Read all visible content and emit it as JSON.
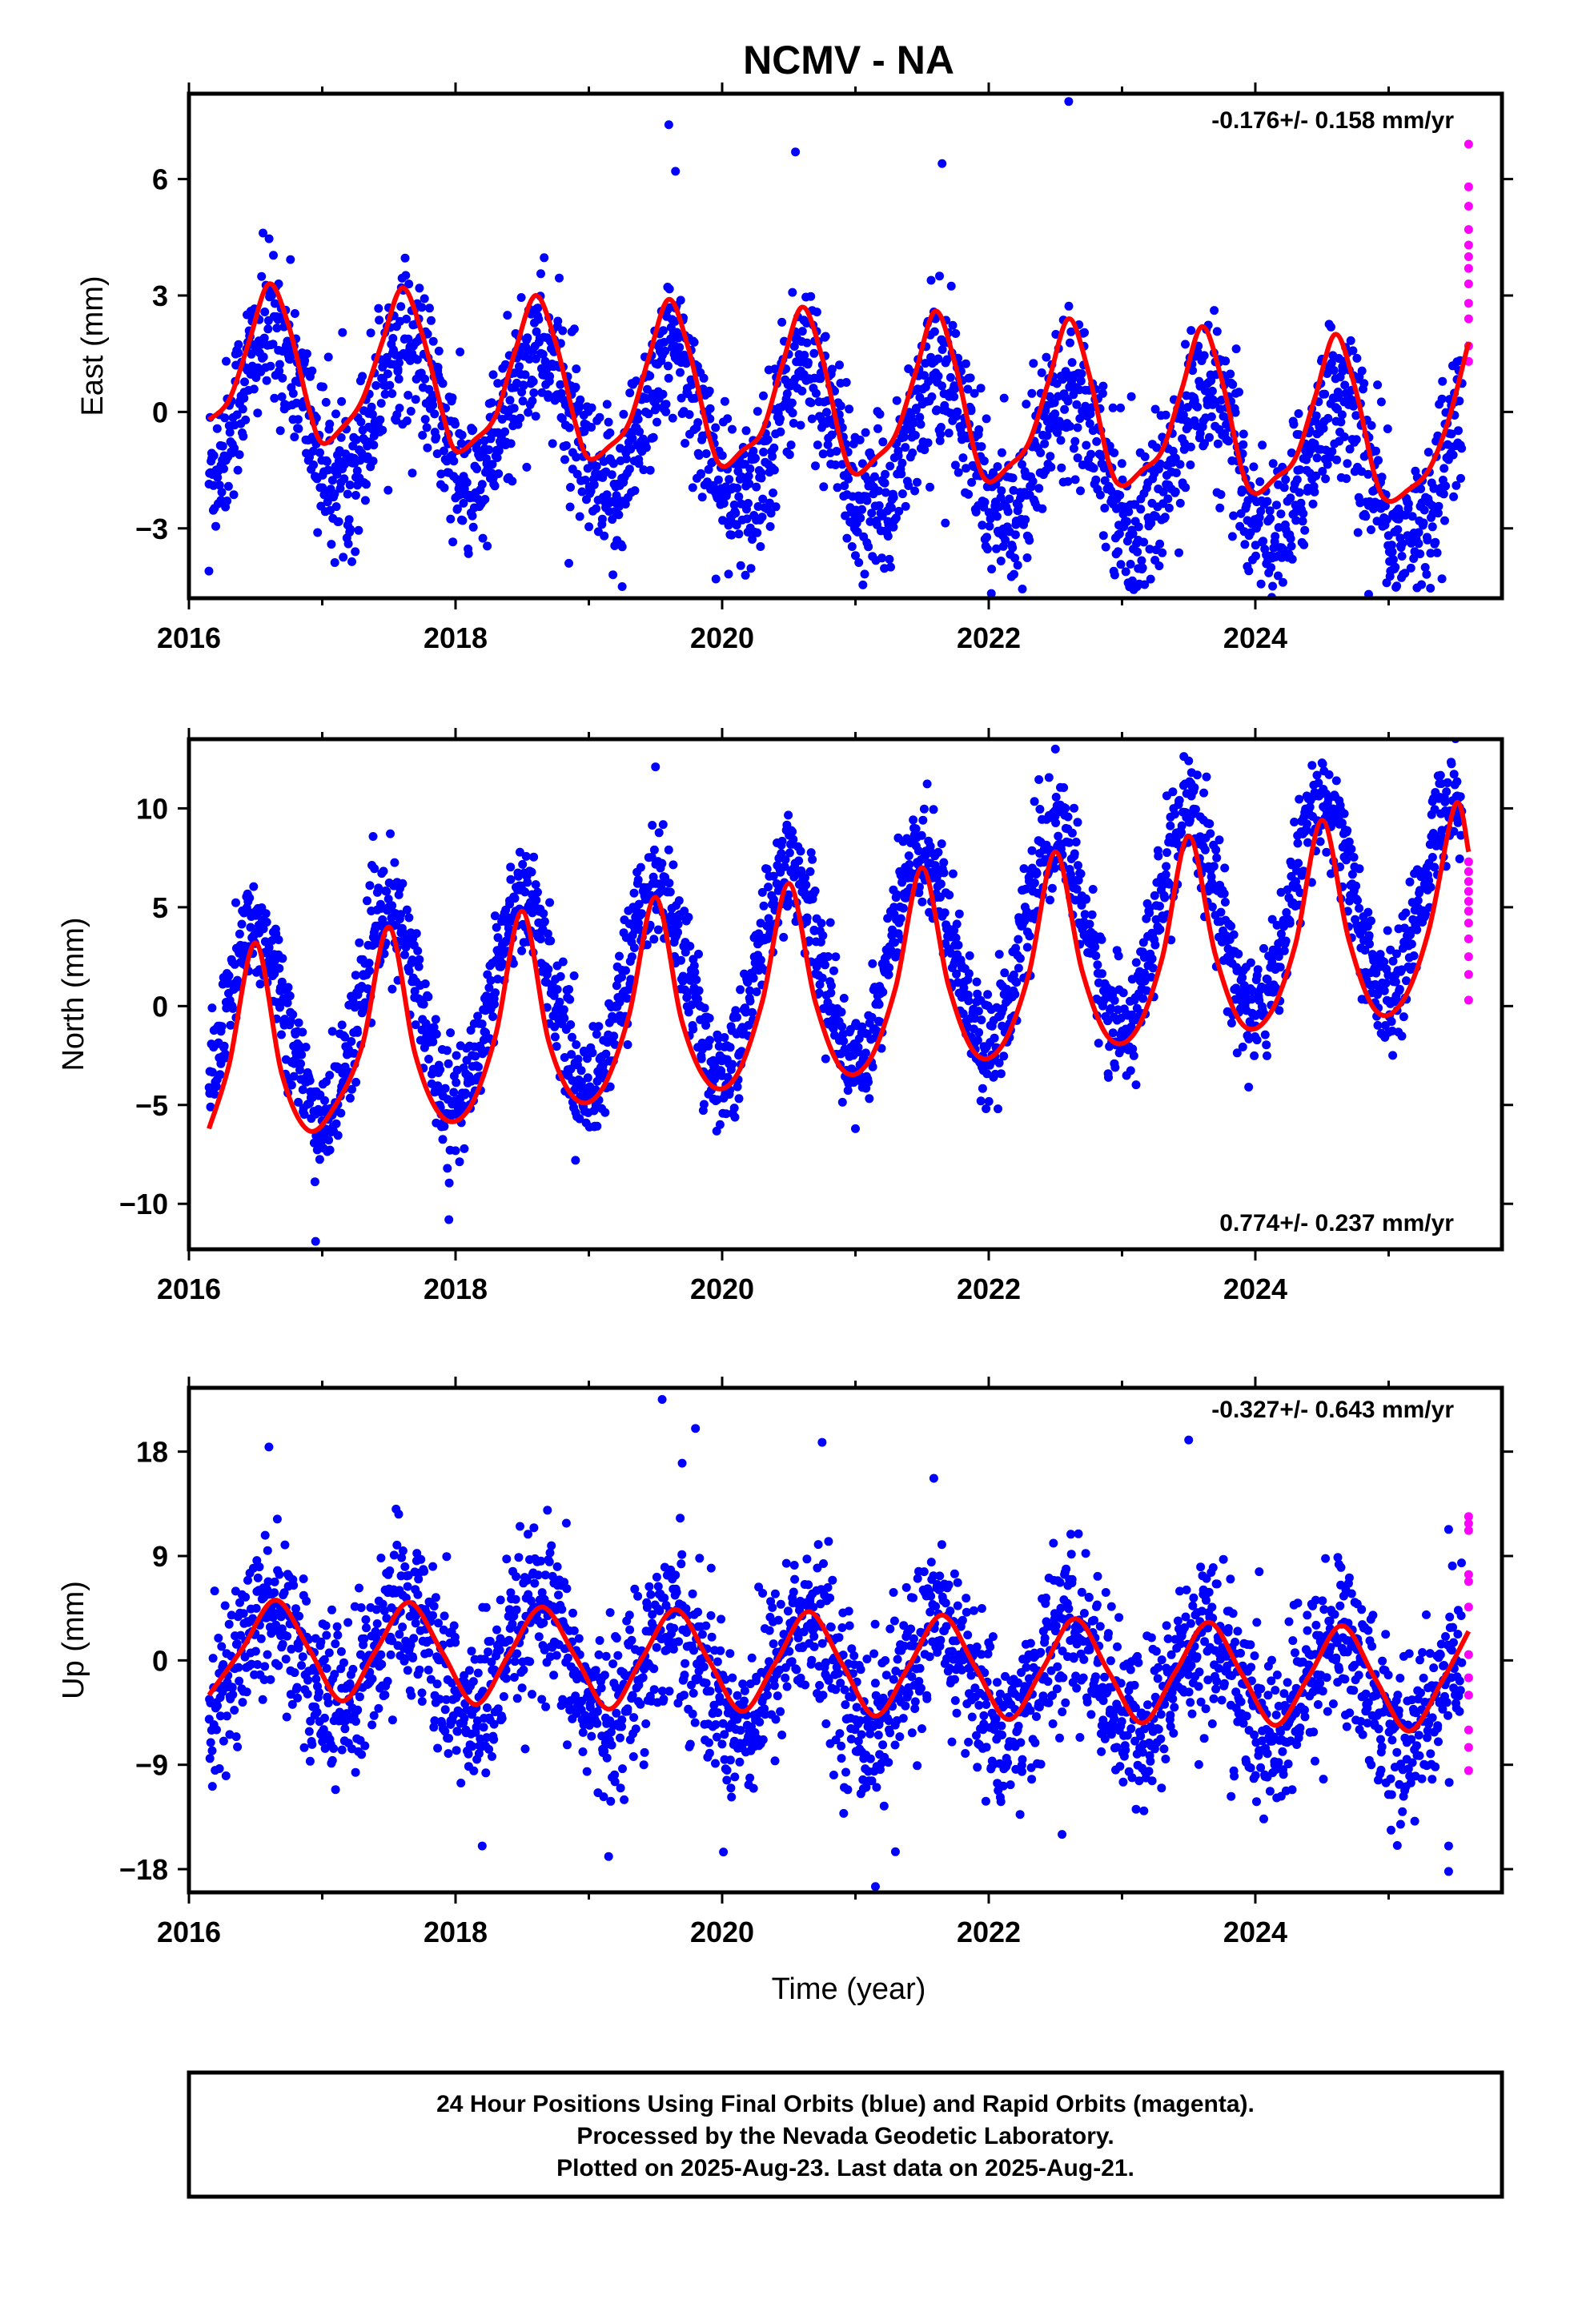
{
  "title": "NCMV - NA",
  "xlabel": "Time (year)",
  "footer": {
    "line1": "24 Hour Positions Using Final Orbits (blue) and Rapid Orbits (magenta).",
    "line2": "Processed by the Nevada Geodetic Laboratory.",
    "line3": "Plotted on 2025-Aug-23. Last data on 2025-Aug-21."
  },
  "colors": {
    "final": "#0000ff",
    "rapid": "#ff00ff",
    "model": "#ff0000"
  },
  "chart_data": [
    {
      "type": "scatter",
      "ylabel": "East (mm)",
      "rate_label": "-0.176+/- 0.158 mm/yr",
      "xlim": [
        2016.0,
        2025.85
      ],
      "ylim": [
        -4.8,
        8.2
      ],
      "xticks": [
        2016,
        2018,
        2020,
        2022,
        2024
      ],
      "yticks": [
        -3,
        0,
        3,
        6
      ],
      "ytick_labels": [
        "−3",
        "0",
        "3",
        "6"
      ],
      "model": {
        "x": [
          2016.15,
          2016.3,
          2016.45,
          2016.6,
          2016.75,
          2016.9,
          2017.0,
          2017.15,
          2017.3,
          2017.45,
          2017.6,
          2017.75,
          2017.9,
          2018.0,
          2018.15,
          2018.3,
          2018.45,
          2018.6,
          2018.75,
          2018.9,
          2019.0,
          2019.15,
          2019.3,
          2019.45,
          2019.6,
          2019.75,
          2019.9,
          2020.0,
          2020.15,
          2020.3,
          2020.45,
          2020.6,
          2020.75,
          2020.9,
          2021.0,
          2021.15,
          2021.3,
          2021.45,
          2021.6,
          2021.75,
          2021.9,
          2022.0,
          2022.15,
          2022.3,
          2022.45,
          2022.6,
          2022.75,
          2022.9,
          2023.0,
          2023.15,
          2023.3,
          2023.45,
          2023.6,
          2023.75,
          2023.9,
          2024.0,
          2024.15,
          2024.3,
          2024.45,
          2024.6,
          2024.75,
          2024.9,
          2025.0,
          2025.15,
          2025.3,
          2025.45,
          2025.6
        ],
        "y": [
          -0.2,
          0.3,
          1.8,
          3.3,
          2.2,
          0.1,
          -0.8,
          -0.4,
          0.3,
          1.8,
          3.2,
          2.0,
          0.0,
          -1.0,
          -0.7,
          -0.1,
          1.6,
          3.0,
          1.8,
          -0.3,
          -1.2,
          -0.9,
          -0.3,
          1.4,
          2.9,
          1.6,
          -0.6,
          -1.4,
          -1.0,
          -0.5,
          1.2,
          2.7,
          1.4,
          -0.9,
          -1.6,
          -1.2,
          -0.6,
          1.0,
          2.6,
          1.2,
          -1.1,
          -1.8,
          -1.4,
          -0.8,
          0.8,
          2.4,
          1.0,
          -1.3,
          -1.9,
          -1.5,
          -1.0,
          0.6,
          2.2,
          0.8,
          -1.5,
          -2.1,
          -1.7,
          -1.2,
          0.4,
          2.0,
          0.6,
          -1.7,
          -2.3,
          -2.0,
          -1.5,
          -0.2,
          1.8
        ]
      },
      "seasonal": {
        "amp": 1.9,
        "peak": 0.62,
        "trend": -0.22,
        "base": 0.35,
        "noise": 1.0,
        "y0": 2016.15,
        "y1": 2025.55
      },
      "rapid": {
        "x": 2025.6,
        "values": [
          5.8,
          5.3,
          4.7,
          4.3,
          4.0,
          3.7,
          3.3,
          2.8,
          2.4,
          1.7,
          1.3,
          6.9
        ]
      },
      "outliers": [
        {
          "x": 2019.6,
          "y": 7.4
        },
        {
          "x": 2019.65,
          "y": 6.2
        },
        {
          "x": 2022.6,
          "y": 8.0
        },
        {
          "x": 2020.55,
          "y": 6.7
        },
        {
          "x": 2021.65,
          "y": 6.4
        },
        {
          "x": 2016.15,
          "y": -4.1
        },
        {
          "x": 2019.25,
          "y": -4.5
        },
        {
          "x": 2024.85,
          "y": -4.7
        },
        {
          "x": 2025.05,
          "y": -4.0
        },
        {
          "x": 2018.85,
          "y": -3.9
        },
        {
          "x": 2025.4,
          "y": -4.3
        },
        {
          "x": 2021.0,
          "y": -3.7
        }
      ]
    },
    {
      "type": "scatter",
      "ylabel": "North (mm)",
      "rate_label": "0.774+/- 0.237 mm/yr",
      "xlim": [
        2016.0,
        2025.85
      ],
      "ylim": [
        -12.3,
        13.5
      ],
      "xticks": [
        2016,
        2018,
        2020,
        2022,
        2024
      ],
      "yticks": [
        -10,
        -5,
        0,
        5,
        10
      ],
      "ytick_labels": [
        "−10",
        "−5",
        "0",
        "5",
        "10"
      ],
      "model": {
        "x": [
          2016.15,
          2016.3,
          2016.5,
          2016.7,
          2016.9,
          2017.1,
          2017.3,
          2017.5,
          2017.7,
          2017.9,
          2018.1,
          2018.3,
          2018.5,
          2018.7,
          2018.9,
          2019.1,
          2019.3,
          2019.5,
          2019.7,
          2019.9,
          2020.1,
          2020.3,
          2020.5,
          2020.7,
          2020.9,
          2021.1,
          2021.3,
          2021.5,
          2021.7,
          2021.9,
          2022.1,
          2022.3,
          2022.5,
          2022.7,
          2022.9,
          2023.1,
          2023.3,
          2023.5,
          2023.7,
          2023.9,
          2024.1,
          2024.3,
          2024.5,
          2024.7,
          2024.9,
          2025.1,
          2025.3,
          2025.5,
          2025.6
        ],
        "y": [
          -6.2,
          -3.0,
          3.2,
          -3.5,
          -6.3,
          -5.0,
          -2.0,
          4.0,
          -2.5,
          -5.6,
          -5.2,
          -1.5,
          4.8,
          -1.8,
          -4.7,
          -4.2,
          -0.5,
          5.5,
          -0.8,
          -3.9,
          -3.6,
          0.2,
          6.2,
          0.2,
          -3.2,
          -2.8,
          0.9,
          7.0,
          1.0,
          -2.4,
          -2.0,
          1.6,
          7.8,
          1.8,
          -1.6,
          -1.3,
          2.4,
          8.6,
          2.6,
          -0.9,
          -0.5,
          3.1,
          9.4,
          3.4,
          -0.2,
          0.2,
          3.8,
          10.2,
          7.8
        ]
      },
      "seasonal": {
        "amp": 5.0,
        "peak": 0.5,
        "trend": 0.77,
        "base": -1.5,
        "noise": 1.4,
        "y0": 2016.15,
        "y1": 2025.55
      },
      "rapid": {
        "x": 2025.6,
        "values": [
          7.3,
          6.8,
          6.3,
          5.8,
          5.3,
          4.8,
          4.2,
          3.4,
          2.5,
          1.6,
          0.3
        ]
      },
      "outliers": [
        {
          "x": 2019.5,
          "y": 12.1
        },
        {
          "x": 2022.5,
          "y": 13.0
        },
        {
          "x": 2023.5,
          "y": 12.4
        },
        {
          "x": 2024.5,
          "y": 12.3
        },
        {
          "x": 2016.95,
          "y": -11.9
        },
        {
          "x": 2017.95,
          "y": -10.8
        },
        {
          "x": 2018.9,
          "y": -7.8
        },
        {
          "x": 2021.0,
          "y": -6.2
        },
        {
          "x": 2023.95,
          "y": -4.1
        }
      ]
    },
    {
      "type": "scatter",
      "ylabel": "Up (mm)",
      "rate_label": "-0.327+/- 0.643 mm/yr",
      "xlim": [
        2016.0,
        2025.85
      ],
      "ylim": [
        -20.0,
        23.5
      ],
      "xticks": [
        2016,
        2018,
        2020,
        2022,
        2024
      ],
      "yticks": [
        -18,
        -9,
        0,
        9,
        18
      ],
      "ytick_labels": [
        "−18",
        "−9",
        "0",
        "9",
        "18"
      ],
      "model": {
        "x": [
          2016.15,
          2016.4,
          2016.65,
          2016.9,
          2017.15,
          2017.4,
          2017.65,
          2017.9,
          2018.15,
          2018.4,
          2018.65,
          2018.9,
          2019.15,
          2019.4,
          2019.65,
          2019.9,
          2020.15,
          2020.4,
          2020.65,
          2020.9,
          2021.15,
          2021.4,
          2021.65,
          2021.9,
          2022.15,
          2022.4,
          2022.65,
          2022.9,
          2023.15,
          2023.4,
          2023.65,
          2023.9,
          2024.15,
          2024.4,
          2024.65,
          2024.9,
          2025.15,
          2025.4,
          2025.6
        ],
        "y": [
          -3.0,
          1.0,
          5.2,
          1.0,
          -3.5,
          0.8,
          5.0,
          0.7,
          -3.8,
          0.5,
          4.6,
          0.3,
          -4.2,
          0.2,
          4.4,
          0.0,
          -4.4,
          -0.2,
          4.2,
          -0.3,
          -4.8,
          -0.5,
          3.9,
          -0.6,
          -5.1,
          -0.8,
          3.6,
          -1.0,
          -5.4,
          -1.0,
          3.3,
          -1.2,
          -5.6,
          -1.4,
          3.0,
          -1.6,
          -6.1,
          -1.8,
          2.5
        ]
      },
      "seasonal": {
        "amp": 4.4,
        "peak": 0.62,
        "trend": -0.33,
        "base": 0.4,
        "noise": 3.6,
        "y0": 2016.15,
        "y1": 2025.55
      },
      "rapid": {
        "x": 2025.6,
        "values": [
          12.4,
          11.8,
          7.4,
          6.8,
          4.6,
          0.5,
          -1.5,
          -3.0,
          -6.0,
          -7.5,
          -9.5,
          11.2
        ]
      },
      "outliers": [
        {
          "x": 2019.55,
          "y": 22.5
        },
        {
          "x": 2019.8,
          "y": 20.0
        },
        {
          "x": 2019.7,
          "y": 17.0
        },
        {
          "x": 2023.5,
          "y": 19.0
        },
        {
          "x": 2016.6,
          "y": 18.4
        },
        {
          "x": 2021.15,
          "y": -19.5
        },
        {
          "x": 2021.3,
          "y": -16.5
        },
        {
          "x": 2025.45,
          "y": -18.2
        },
        {
          "x": 2025.45,
          "y": -16.0
        },
        {
          "x": 2018.2,
          "y": -16.0
        },
        {
          "x": 2022.55,
          "y": -15.0
        },
        {
          "x": 2020.75,
          "y": 18.8
        }
      ]
    }
  ]
}
